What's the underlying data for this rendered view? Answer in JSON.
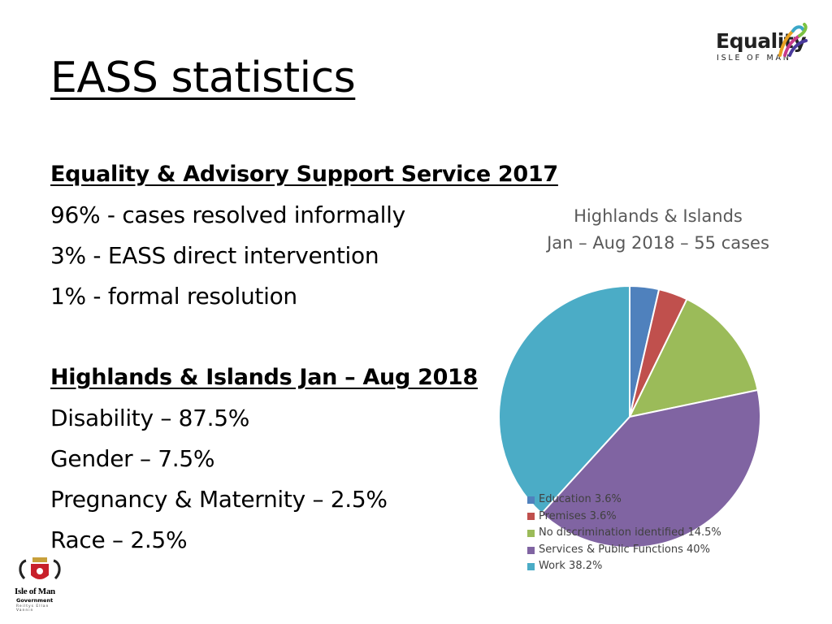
{
  "slide": {
    "title": "EASS statistics",
    "lines": [
      {
        "text": "Equality & Advisory Support Service 2017",
        "style": "head"
      },
      {
        "text": "96% - cases resolved informally",
        "style": "normal"
      },
      {
        "text": "3% - EASS direct intervention",
        "style": "normal"
      },
      {
        "text": "1% - formal resolution",
        "style": "normal"
      },
      {
        "text": "",
        "style": "spacer"
      },
      {
        "text": "Highlands & Islands Jan – Aug 2018",
        "style": "head"
      },
      {
        "text": "Disability – 87.5%",
        "style": "normal"
      },
      {
        "text": "Gender – 7.5%",
        "style": "normal"
      },
      {
        "text": "Pregnancy & Maternity – 2.5%",
        "style": "normal"
      },
      {
        "text": "Race – 2.5%",
        "style": "normal"
      }
    ]
  },
  "logo": {
    "word": "Equality",
    "sub": "ISLE OF MAN"
  },
  "crest": {
    "name": "Isle of Man",
    "sub": "Government",
    "tagline": "Reiltys Ellan Vannin"
  },
  "chart_data": {
    "type": "pie",
    "title_lines": [
      "Highlands & Islands",
      "Jan – Aug 2018 – 55 cases"
    ],
    "legend_position": "bottom-left overlay",
    "start_angle_deg": 0,
    "direction": "clockwise",
    "slices": [
      {
        "label": "Education 3.6%",
        "value": 3.6,
        "color": "#4F81BD"
      },
      {
        "label": "Premises 3.6%",
        "value": 3.6,
        "color": "#C0504D"
      },
      {
        "label": "No discrimination identified 14.5%",
        "value": 14.5,
        "color": "#9BBB59"
      },
      {
        "label": "Services & Public Functions 40%",
        "value": 40,
        "color": "#8064A2"
      },
      {
        "label": "Work 38.2%",
        "value": 38.2,
        "color": "#4BACC6"
      }
    ]
  }
}
